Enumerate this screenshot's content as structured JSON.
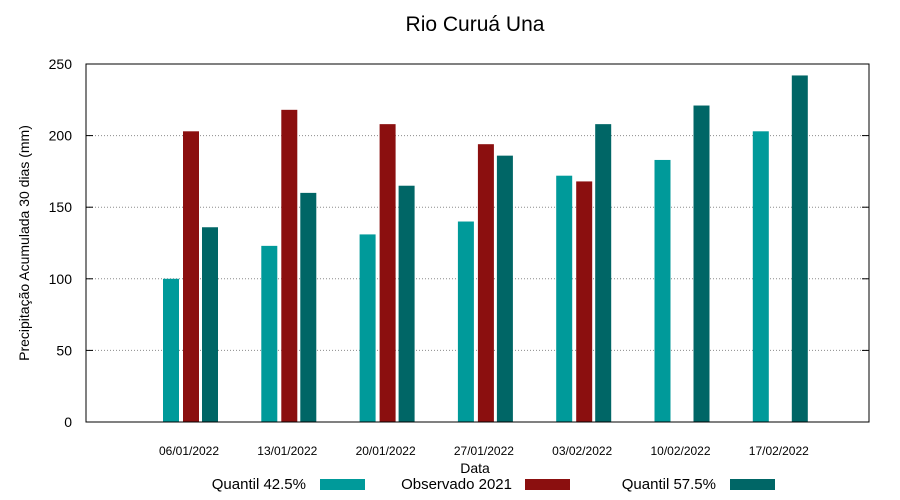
{
  "chart_data": {
    "type": "bar",
    "title": "Rio Curuá Una",
    "xlabel": "Data",
    "ylabel": "Precipitação Acumulada 30 dias (mm)",
    "ylim": [
      0,
      250
    ],
    "yticks": [
      0,
      50,
      100,
      150,
      200,
      250
    ],
    "grid": true,
    "legend_position": "bottom",
    "categories": [
      "06/01/2022",
      "13/01/2022",
      "20/01/2022",
      "27/01/2022",
      "03/02/2022",
      "10/02/2022",
      "17/02/2022"
    ],
    "series": [
      {
        "name": "Quantil 42.5%",
        "color": "#009a9a",
        "values": [
          100,
          123,
          131,
          140,
          172,
          183,
          203
        ]
      },
      {
        "name": "Observado 2021",
        "color": "#8b0f0f",
        "values": [
          203,
          218,
          208,
          194,
          168,
          null,
          null
        ]
      },
      {
        "name": "Quantil 57.5%",
        "color": "#006666",
        "values": [
          136,
          160,
          165,
          186,
          208,
          221,
          242
        ]
      }
    ]
  }
}
